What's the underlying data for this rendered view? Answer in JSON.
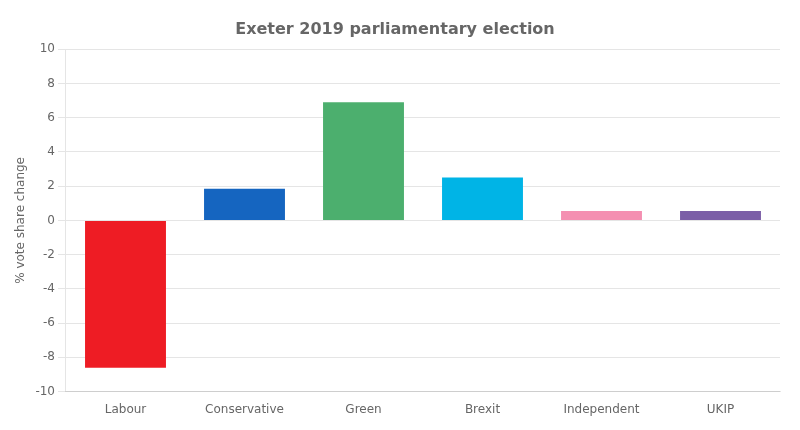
{
  "chart_data": {
    "type": "bar",
    "title": "Exeter 2019 parliamentary election",
    "categories": [
      "Labour",
      "Conservative",
      "Green",
      "Brexit",
      "Independent",
      "UKIP"
    ],
    "values": [
      -8.6,
      1.85,
      6.9,
      2.5,
      0.55,
      0.55
    ],
    "colors": [
      "#ee1c24",
      "#1565c0",
      "#4caf6e",
      "#00b4e6",
      "#f48fb1",
      "#7b5ea7"
    ],
    "ylabel": "% vote share change",
    "ylim": [
      -10,
      10
    ],
    "yticks": [
      -10,
      -8,
      -6,
      -4,
      -2,
      0,
      2,
      4,
      6,
      8,
      10
    ],
    "grid": true
  }
}
